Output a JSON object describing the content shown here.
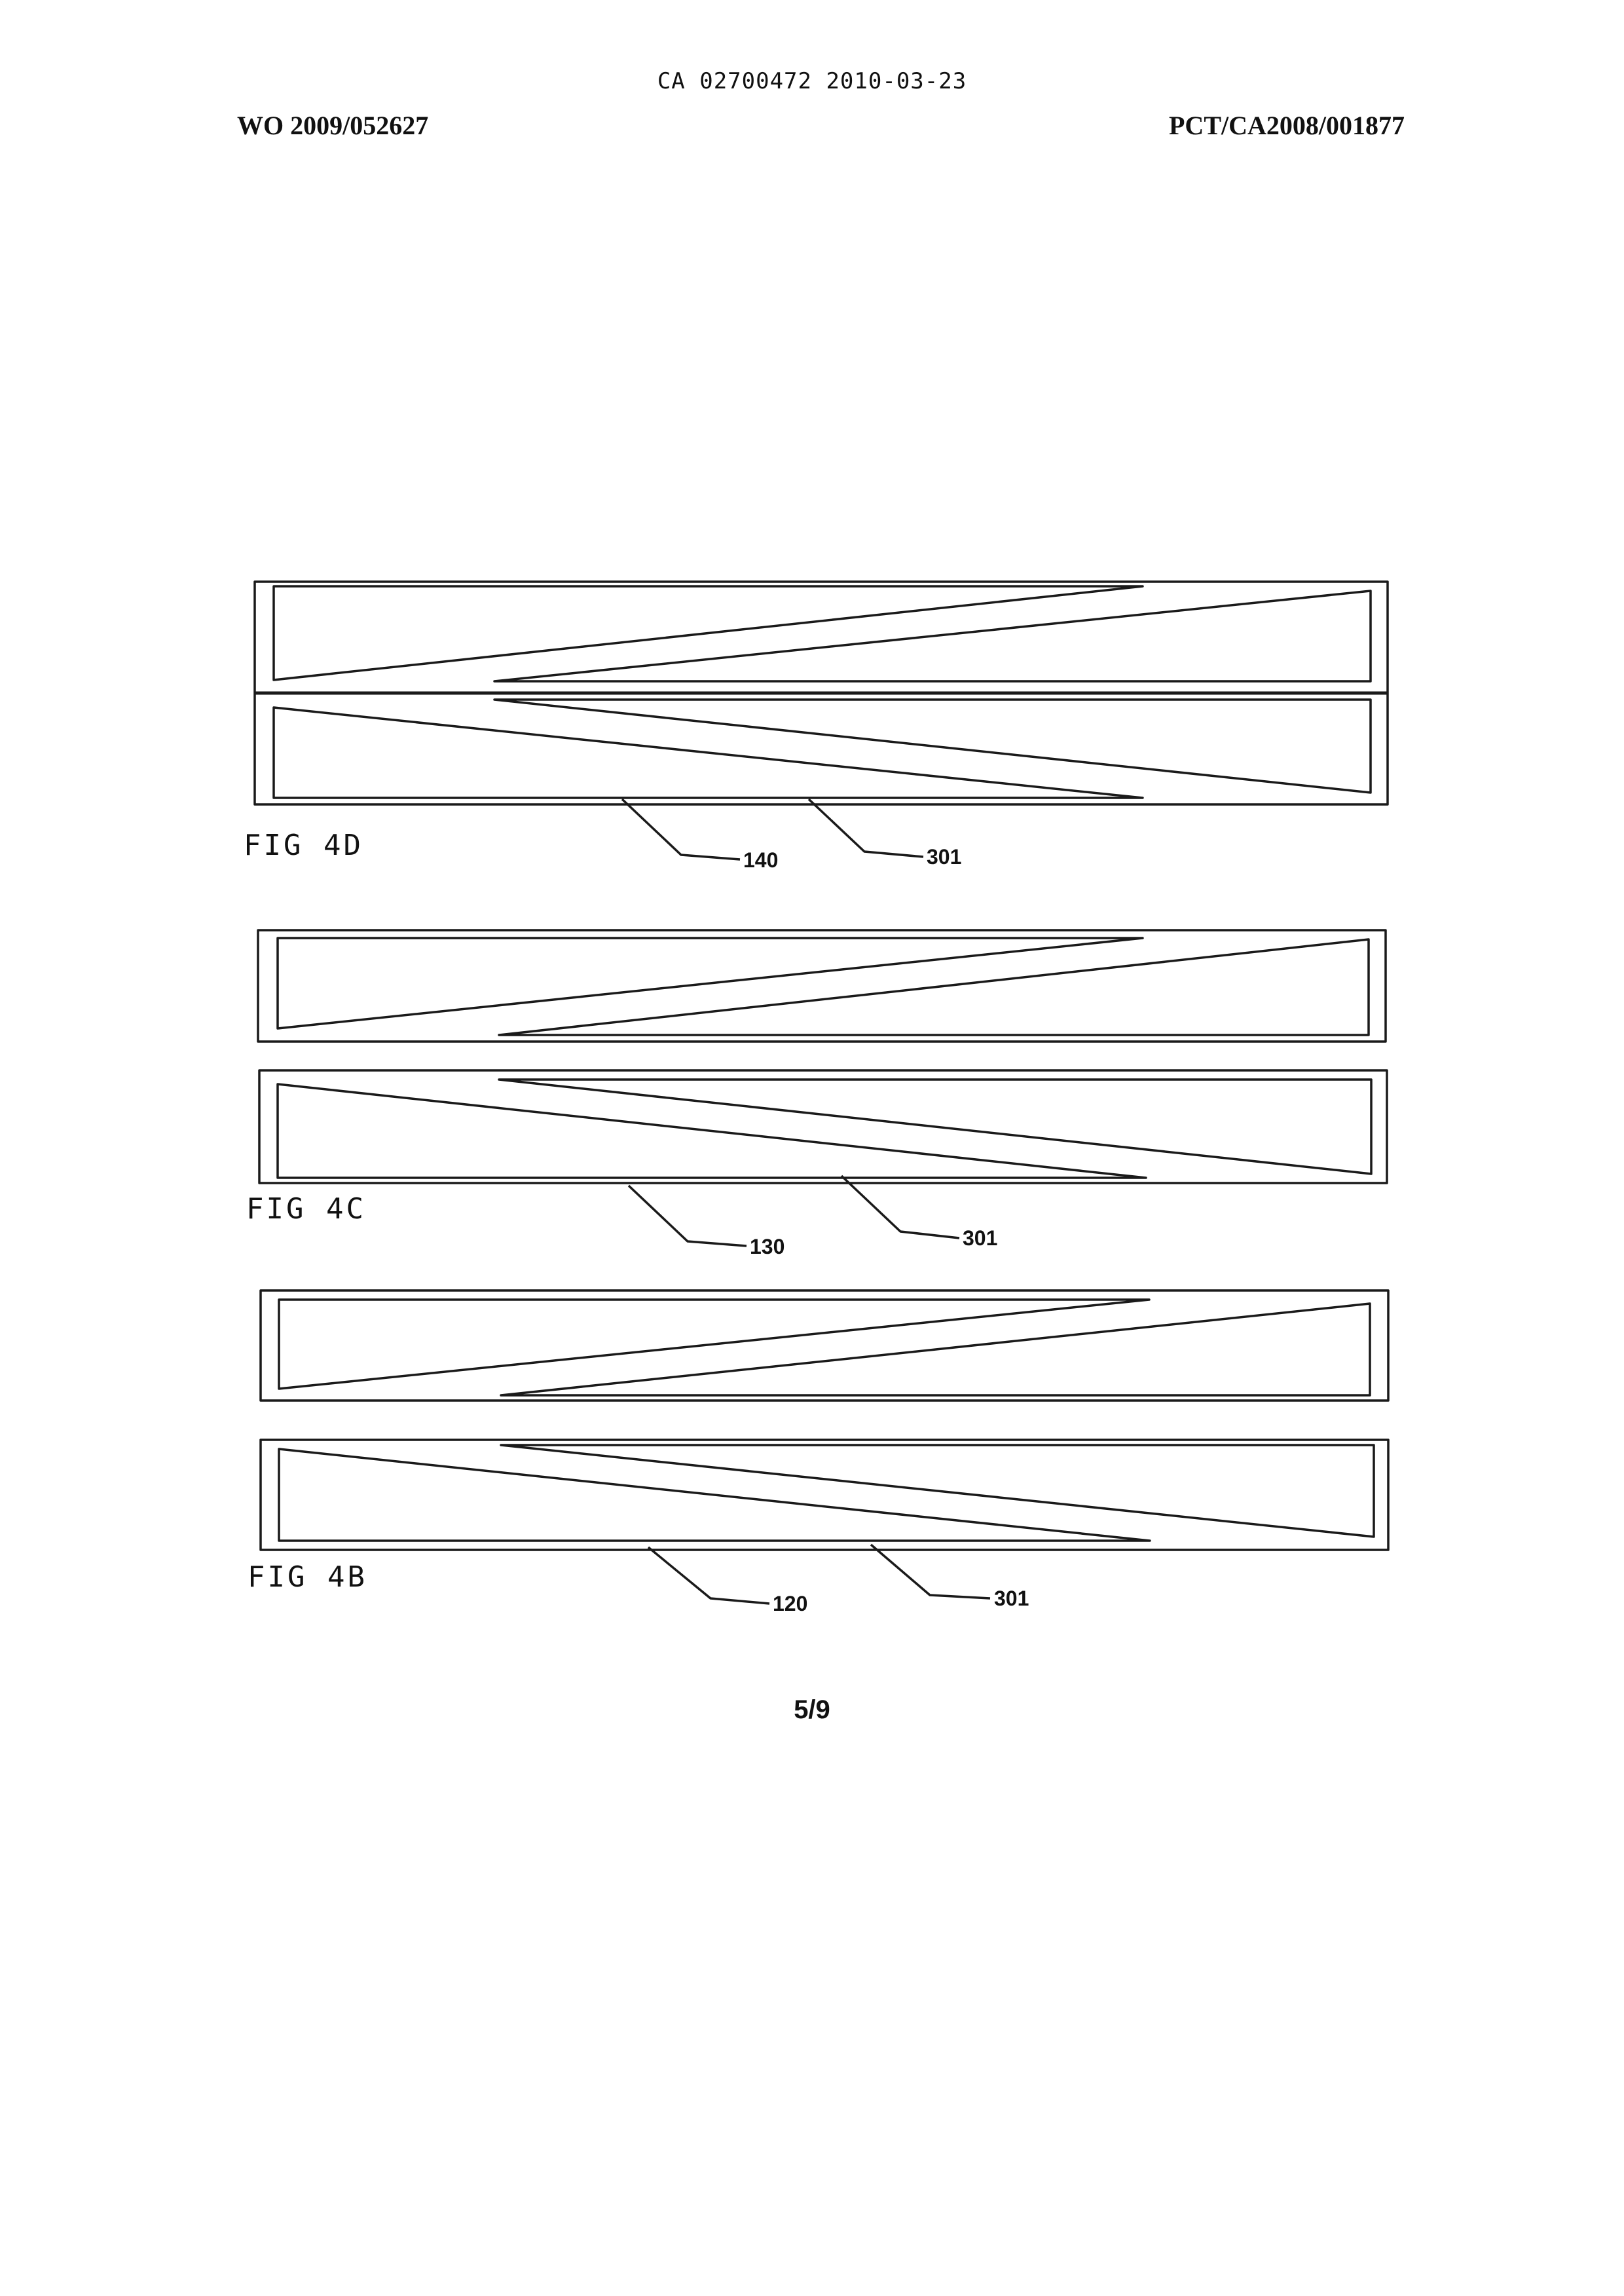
{
  "header": {
    "ca_stamp": "CA 02700472 2010-03-23",
    "publication_number": "WO 2009/052627",
    "application_number": "PCT/CA2008/001877"
  },
  "figures": [
    {
      "id": "4D",
      "label": "FIG 4D",
      "refs": [
        "140",
        "301"
      ]
    },
    {
      "id": "4C",
      "label": "FIG 4C",
      "refs": [
        "130",
        "301"
      ]
    },
    {
      "id": "4B",
      "label": "FIG 4B",
      "refs": [
        "120",
        "301"
      ]
    }
  ],
  "footer": {
    "page_number": "5/9"
  }
}
